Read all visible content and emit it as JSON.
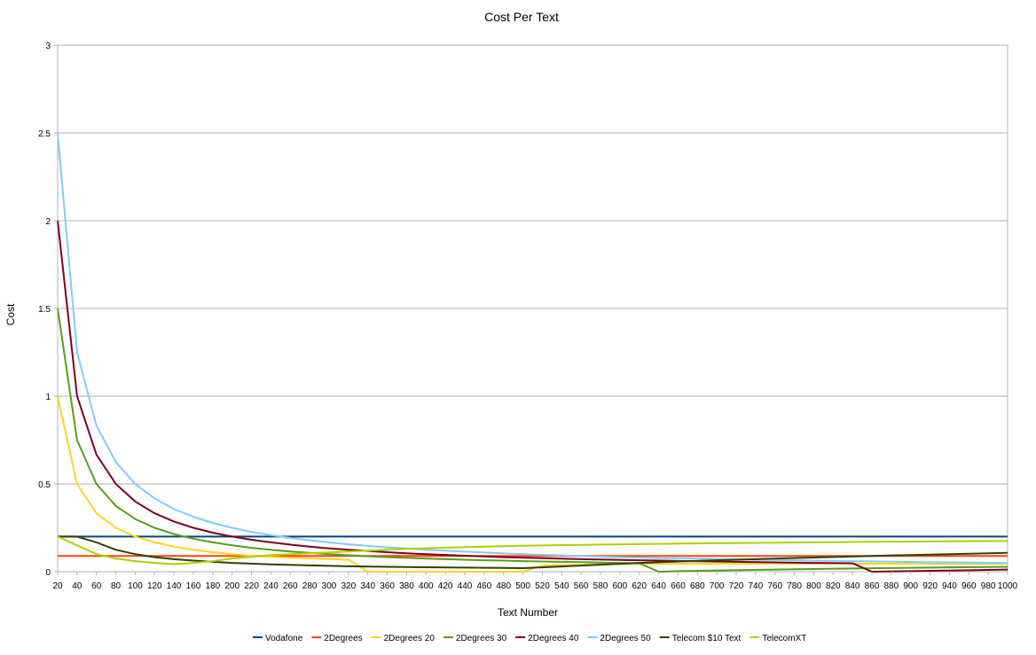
{
  "chart_data": {
    "type": "line",
    "title": "Cost Per Text",
    "xlabel": "Text Number",
    "ylabel": "Cost",
    "xlim": [
      20,
      1000
    ],
    "ylim": [
      0,
      3
    ],
    "y_ticks": [
      "0",
      "0.5",
      "1",
      "1.5",
      "2",
      "2.5",
      "3"
    ],
    "x_ticks": [
      "20",
      "40",
      "60",
      "80",
      "100",
      "120",
      "140",
      "160",
      "180",
      "200",
      "220",
      "240",
      "260",
      "280",
      "300",
      "320",
      "340",
      "360",
      "380",
      "400",
      "420",
      "440",
      "460",
      "480",
      "500",
      "520",
      "540",
      "560",
      "580",
      "600",
      "620",
      "640",
      "660",
      "680",
      "700",
      "720",
      "740",
      "760",
      "780",
      "800",
      "820",
      "840",
      "860",
      "880",
      "900",
      "920",
      "940",
      "960",
      "980",
      "1000"
    ],
    "grid": true,
    "legend_position": "bottom",
    "series": [
      {
        "name": "Vodafone",
        "color": "#004586",
        "points": [
          [
            20,
            0.2
          ],
          [
            1000,
            0.2
          ]
        ]
      },
      {
        "name": "2Degrees",
        "color": "#ff420e",
        "points": [
          [
            20,
            0.09
          ],
          [
            1000,
            0.09
          ]
        ]
      },
      {
        "name": "2Degrees 20",
        "color": "#ffd320",
        "points": [
          [
            20,
            1.0
          ],
          [
            40,
            0.5
          ],
          [
            60,
            0.333
          ],
          [
            80,
            0.25
          ],
          [
            100,
            0.2
          ],
          [
            120,
            0.167
          ],
          [
            140,
            0.143
          ],
          [
            160,
            0.125
          ],
          [
            180,
            0.111
          ],
          [
            200,
            0.1
          ],
          [
            220,
            0.09
          ],
          [
            240,
            0.085
          ],
          [
            260,
            0.08
          ],
          [
            280,
            0.076
          ],
          [
            300,
            0.072
          ],
          [
            320,
            0.068
          ],
          [
            340,
            0.0
          ],
          [
            500,
            0.0
          ],
          [
            520,
            0.035
          ],
          [
            560,
            0.04
          ],
          [
            620,
            0.045
          ],
          [
            640,
            0.045
          ],
          [
            700,
            0.045
          ],
          [
            760,
            0.046
          ],
          [
            840,
            0.047
          ],
          [
            860,
            0.045
          ],
          [
            1000,
            0.045
          ]
        ]
      },
      {
        "name": "2Degrees 30",
        "color": "#579d1c",
        "points": [
          [
            20,
            1.5
          ],
          [
            40,
            0.75
          ],
          [
            60,
            0.5
          ],
          [
            80,
            0.375
          ],
          [
            100,
            0.3
          ],
          [
            120,
            0.25
          ],
          [
            140,
            0.214
          ],
          [
            160,
            0.188
          ],
          [
            180,
            0.167
          ],
          [
            200,
            0.15
          ],
          [
            220,
            0.136
          ],
          [
            240,
            0.125
          ],
          [
            260,
            0.115
          ],
          [
            280,
            0.107
          ],
          [
            300,
            0.1
          ],
          [
            320,
            0.094
          ],
          [
            340,
            0.088
          ],
          [
            360,
            0.083
          ],
          [
            380,
            0.079
          ],
          [
            400,
            0.075
          ],
          [
            420,
            0.071
          ],
          [
            440,
            0.068
          ],
          [
            460,
            0.065
          ],
          [
            480,
            0.063
          ],
          [
            500,
            0.06
          ],
          [
            520,
            0.058
          ],
          [
            540,
            0.056
          ],
          [
            560,
            0.054
          ],
          [
            580,
            0.052
          ],
          [
            600,
            0.05
          ],
          [
            620,
            0.048
          ],
          [
            640,
            0.0
          ],
          [
            660,
            0.003
          ],
          [
            700,
            0.007
          ],
          [
            760,
            0.012
          ],
          [
            840,
            0.018
          ],
          [
            920,
            0.023
          ],
          [
            1000,
            0.028
          ]
        ]
      },
      {
        "name": "2Degrees 40",
        "color": "#7e0021",
        "points": [
          [
            20,
            2.0
          ],
          [
            40,
            1.0
          ],
          [
            60,
            0.667
          ],
          [
            80,
            0.5
          ],
          [
            100,
            0.4
          ],
          [
            120,
            0.333
          ],
          [
            140,
            0.286
          ],
          [
            160,
            0.25
          ],
          [
            180,
            0.222
          ],
          [
            200,
            0.2
          ],
          [
            220,
            0.182
          ],
          [
            240,
            0.167
          ],
          [
            260,
            0.154
          ],
          [
            280,
            0.143
          ],
          [
            300,
            0.133
          ],
          [
            320,
            0.125
          ],
          [
            340,
            0.118
          ],
          [
            360,
            0.111
          ],
          [
            380,
            0.105
          ],
          [
            400,
            0.1
          ],
          [
            440,
            0.091
          ],
          [
            480,
            0.083
          ],
          [
            520,
            0.077
          ],
          [
            560,
            0.071
          ],
          [
            600,
            0.067
          ],
          [
            640,
            0.063
          ],
          [
            680,
            0.059
          ],
          [
            720,
            0.056
          ],
          [
            760,
            0.053
          ],
          [
            800,
            0.05
          ],
          [
            840,
            0.048
          ],
          [
            860,
            0.0
          ],
          [
            900,
            0.003
          ],
          [
            960,
            0.008
          ],
          [
            1000,
            0.012
          ]
        ]
      },
      {
        "name": "2Degrees 50",
        "color": "#83caff",
        "points": [
          [
            20,
            2.5
          ],
          [
            40,
            1.25
          ],
          [
            60,
            0.833
          ],
          [
            80,
            0.625
          ],
          [
            100,
            0.5
          ],
          [
            120,
            0.417
          ],
          [
            140,
            0.357
          ],
          [
            160,
            0.313
          ],
          [
            180,
            0.278
          ],
          [
            200,
            0.25
          ],
          [
            220,
            0.227
          ],
          [
            240,
            0.208
          ],
          [
            260,
            0.192
          ],
          [
            280,
            0.179
          ],
          [
            300,
            0.167
          ],
          [
            320,
            0.156
          ],
          [
            340,
            0.147
          ],
          [
            360,
            0.139
          ],
          [
            380,
            0.132
          ],
          [
            400,
            0.125
          ],
          [
            440,
            0.114
          ],
          [
            480,
            0.104
          ],
          [
            520,
            0.096
          ],
          [
            560,
            0.089
          ],
          [
            600,
            0.083
          ],
          [
            640,
            0.078
          ],
          [
            680,
            0.074
          ],
          [
            720,
            0.069
          ],
          [
            760,
            0.066
          ],
          [
            800,
            0.063
          ],
          [
            840,
            0.06
          ],
          [
            880,
            0.057
          ],
          [
            920,
            0.054
          ],
          [
            960,
            0.052
          ],
          [
            1000,
            0.05
          ]
        ]
      },
      {
        "name": "Telecom $10 Text",
        "color": "#314004",
        "points": [
          [
            20,
            0.2
          ],
          [
            40,
            0.2
          ],
          [
            60,
            0.167
          ],
          [
            80,
            0.125
          ],
          [
            100,
            0.1
          ],
          [
            120,
            0.083
          ],
          [
            140,
            0.071
          ],
          [
            160,
            0.063
          ],
          [
            180,
            0.056
          ],
          [
            200,
            0.05
          ],
          [
            240,
            0.042
          ],
          [
            280,
            0.036
          ],
          [
            320,
            0.031
          ],
          [
            360,
            0.028
          ],
          [
            400,
            0.025
          ],
          [
            440,
            0.023
          ],
          [
            480,
            0.021
          ],
          [
            500,
            0.02
          ],
          [
            540,
            0.03
          ],
          [
            580,
            0.04
          ],
          [
            620,
            0.05
          ],
          [
            700,
            0.065
          ],
          [
            780,
            0.078
          ],
          [
            860,
            0.09
          ],
          [
            940,
            0.1
          ],
          [
            1000,
            0.107
          ]
        ]
      },
      {
        "name": "TelecomXT",
        "color": "#aecf00",
        "points": [
          [
            20,
            0.2
          ],
          [
            40,
            0.15
          ],
          [
            60,
            0.1
          ],
          [
            80,
            0.075
          ],
          [
            100,
            0.06
          ],
          [
            120,
            0.05
          ],
          [
            140,
            0.043
          ],
          [
            160,
            0.05
          ],
          [
            180,
            0.06
          ],
          [
            200,
            0.075
          ],
          [
            220,
            0.085
          ],
          [
            240,
            0.095
          ],
          [
            260,
            0.1
          ],
          [
            280,
            0.105
          ],
          [
            300,
            0.11
          ],
          [
            340,
            0.12
          ],
          [
            380,
            0.13
          ],
          [
            420,
            0.137
          ],
          [
            460,
            0.143
          ],
          [
            500,
            0.148
          ],
          [
            560,
            0.153
          ],
          [
            620,
            0.157
          ],
          [
            700,
            0.162
          ],
          [
            780,
            0.166
          ],
          [
            860,
            0.17
          ],
          [
            940,
            0.173
          ],
          [
            1000,
            0.175
          ]
        ]
      }
    ]
  }
}
